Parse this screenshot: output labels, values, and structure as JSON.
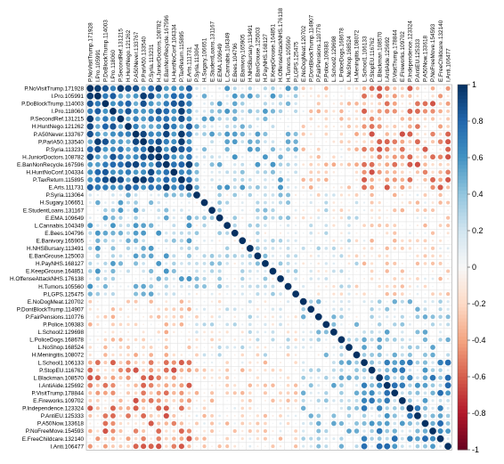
{
  "chart_data": {
    "type": "heatmap",
    "variables": [
      "P.NoVisitTrump.171928",
      "I.Pro.105991",
      "P.DoBlockTrump.114003",
      "I.Pro.118060",
      "P.SecondRef.131215",
      "H.HuntNego.121262",
      "P.A50Never.133767",
      "P.ParlA50.133540",
      "P.Syria.113231",
      "H.JuniorDoctors.108782",
      "E.BanNonRecycle.167596",
      "H.HuntNoConf.104334",
      "P.TaxReturn.115895",
      "E.Arts.111731",
      "P.Syria.113064",
      "H.Sugary.106651",
      "E.StudentLoans.131167",
      "E.EMA.109649",
      "L.Cannabis.104349",
      "E.Bees.104796",
      "E.Banivory.165905",
      "H.NHSBursary.113491",
      "E.BanGrouse.125003",
      "H.PayNHS.168127",
      "E.KeepGrouse.164851",
      "H.OffenseAttackNHS.176138",
      "H.Tumors.105560",
      "P.LGPS.125475",
      "E.NoDogMeat.120702",
      "P.DontBlockTrump.114907",
      "P.FairPensions.110776",
      "P.Police.109383",
      "L.School2.129698",
      "L.PoliceDogs.168678",
      "L.NoShop.168524",
      "H.Meningitis.108072",
      "L.School1.106133",
      "P.StopEU.116762",
      "L.Blackman.108570",
      "I.AntiAide.125692",
      "P.VisitTrump.178844",
      "E.Fireworks.109702",
      "P.Independence.123324",
      "P.AntiEU.125333",
      "P.A50Now.133618",
      "P.NoFreeMove.154593",
      "E.FreeChildcare.132140",
      "I.Anti.106477"
    ],
    "scale": {
      "min": -1,
      "max": 1,
      "ticks": [
        "1",
        "0.8",
        "0.6",
        "0.4",
        "0.2",
        "0",
        "-0.2",
        "-0.4",
        "-0.6",
        "-0.8",
        "-1"
      ],
      "colors": {
        "neg": "#67001f",
        "mid": "#f7f7f7",
        "pos": "#053061"
      }
    },
    "blocks": {
      "pro_eu": [
        0,
        13
      ],
      "anti_eu": [
        36,
        47
      ]
    },
    "encoding": "circle radius and color by correlation"
  }
}
